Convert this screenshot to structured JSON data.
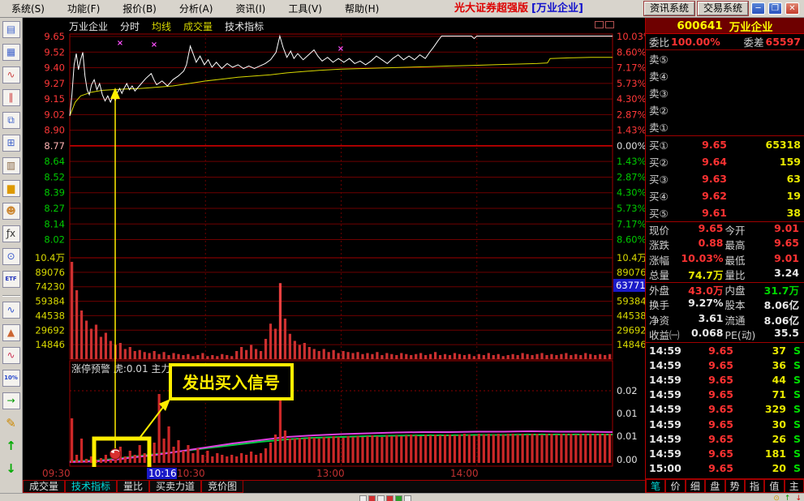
{
  "menu": {
    "items": [
      "系统(S)",
      "功能(F)",
      "报价(B)",
      "分析(A)",
      "资讯(I)",
      "工具(V)",
      "帮助(H)"
    ]
  },
  "titlebar": {
    "app_title": "光大证券超强版",
    "context": "[万业企业]",
    "info_button": "资讯系统",
    "trade_button": "交易系统"
  },
  "toolbar_icons": [
    {
      "name": "report-icon",
      "glyph": "▤",
      "color": "#4466cc"
    },
    {
      "name": "quote-table-icon",
      "glyph": "▦",
      "color": "#4466cc"
    },
    {
      "name": "trend-line-icon",
      "glyph": "∿",
      "color": "#cc4444"
    },
    {
      "name": "kline-icon",
      "glyph": "∥",
      "color": "#cc3333"
    },
    {
      "name": "pages-icon",
      "glyph": "⧉",
      "color": "#4466cc"
    },
    {
      "name": "multi-window-icon",
      "glyph": "⊞",
      "color": "#4466cc"
    },
    {
      "name": "page-setup-icon",
      "glyph": "▥",
      "color": "#886644"
    },
    {
      "name": "gold-icon",
      "glyph": "▆",
      "color": "#dd9900"
    },
    {
      "name": "users-icon",
      "glyph": "☻☻",
      "color": "#cc8833"
    },
    {
      "name": "formula-icon",
      "glyph": "ƒx",
      "color": "#333333"
    },
    {
      "name": "search-page-icon",
      "glyph": "⊙",
      "color": "#3355cc"
    },
    {
      "name": "etf-icon",
      "glyph": "ETF",
      "color": "#2233bb",
      "txt": true
    },
    {
      "sep": true
    },
    {
      "name": "wave-icon",
      "glyph": "∿",
      "color": "#3355cc"
    },
    {
      "name": "mountain-chart-icon",
      "glyph": "▲",
      "color": "#cc6633"
    },
    {
      "name": "indicator-chart-icon",
      "glyph": "∿",
      "color": "#cc3355"
    },
    {
      "name": "percent-icon",
      "glyph": "10%",
      "color": "#2244cc",
      "txt": true
    },
    {
      "name": "exit-door-icon",
      "glyph": "→",
      "color": "#009900"
    },
    {
      "name": "pencil-icon",
      "glyph": "✎",
      "color": "#cc8800",
      "flat": true
    },
    {
      "name": "arrow-up-icon",
      "glyph": "↑",
      "color": "#00aa00",
      "flat": true
    },
    {
      "name": "arrow-down-icon",
      "glyph": "↓",
      "color": "#00aa00",
      "flat": true
    }
  ],
  "chart": {
    "header": {
      "stock": "万业企业",
      "views": [
        {
          "label": "分时",
          "color": "#e8e8e8"
        },
        {
          "label": "均线",
          "color": "#d8d800"
        },
        {
          "label": "成交量",
          "color": "#d8d800"
        },
        {
          "label": "技术指标",
          "color": "#e8e8e8"
        }
      ]
    },
    "left_prices": [
      {
        "t": "9.65",
        "c": "r"
      },
      {
        "t": "9.52",
        "c": "r"
      },
      {
        "t": "9.40",
        "c": "r"
      },
      {
        "t": "9.27",
        "c": "r"
      },
      {
        "t": "9.15",
        "c": "r"
      },
      {
        "t": "9.02",
        "c": "r"
      },
      {
        "t": "8.90",
        "c": "r"
      },
      {
        "t": "8.77",
        "c": "p"
      },
      {
        "t": "8.64",
        "c": "g"
      },
      {
        "t": "8.52",
        "c": "g"
      },
      {
        "t": "8.39",
        "c": "g"
      },
      {
        "t": "8.27",
        "c": "g"
      },
      {
        "t": "8.14",
        "c": "g"
      },
      {
        "t": "8.02",
        "c": "g"
      }
    ],
    "right_pcts": [
      {
        "t": "10.03%",
        "c": "r"
      },
      {
        "t": "8.60%",
        "c": "r"
      },
      {
        "t": "7.17%",
        "c": "r"
      },
      {
        "t": "5.73%",
        "c": "r"
      },
      {
        "t": "4.30%",
        "c": "r"
      },
      {
        "t": "2.87%",
        "c": "r"
      },
      {
        "t": "1.43%",
        "c": "r"
      },
      {
        "t": "0.00%",
        "c": "w"
      },
      {
        "t": "1.43%",
        "c": "g"
      },
      {
        "t": "2.87%",
        "c": "g"
      },
      {
        "t": "4.30%",
        "c": "g"
      },
      {
        "t": "5.73%",
        "c": "g"
      },
      {
        "t": "7.17%",
        "c": "g"
      },
      {
        "t": "8.60%",
        "c": "g"
      }
    ],
    "vol_labels": [
      "10.4万",
      "89076",
      "74230",
      "59384",
      "44538",
      "29692",
      "14846"
    ],
    "vol_highlight": "63771",
    "ind_labels": [
      "0.02",
      "0.01",
      "0.01",
      "0.00"
    ],
    "ind_title": "涨停预警 虎:0.01 主力:0.01 散户:0.01",
    "signal_text": "发出买入信号",
    "time_labels": [
      {
        "t": "09:30",
        "x": 24,
        "hl": false
      },
      {
        "t": "10:16",
        "x": 155,
        "hl": true
      },
      {
        "t": "10:30",
        "x": 190,
        "hl": false
      },
      {
        "t": "13:00",
        "x": 362,
        "hl": false
      },
      {
        "t": "14:00",
        "x": 527,
        "hl": false
      }
    ],
    "bottom_tabs": [
      {
        "label": "成交量",
        "active": false
      },
      {
        "label": "技术指标",
        "active": true
      },
      {
        "label": "量比",
        "active": false
      },
      {
        "label": "买卖力道",
        "active": false
      },
      {
        "label": "竞价图",
        "active": false
      }
    ]
  },
  "chart_data": {
    "type": "line",
    "x_range": [
      "09:30",
      "15:00"
    ],
    "prev_close": 8.77,
    "price_range": [
      8.02,
      9.65
    ],
    "limit_up_pct": "10.03%",
    "price_points": [
      [
        0,
        9.01
      ],
      [
        0.004,
        9.18
      ],
      [
        0.008,
        9.42
      ],
      [
        0.012,
        9.51
      ],
      [
        0.016,
        9.38
      ],
      [
        0.02,
        9.46
      ],
      [
        0.024,
        9.52
      ],
      [
        0.028,
        9.33
      ],
      [
        0.032,
        9.22
      ],
      [
        0.036,
        9.18
      ],
      [
        0.04,
        9.26
      ],
      [
        0.045,
        9.3
      ],
      [
        0.05,
        9.22
      ],
      [
        0.055,
        9.27
      ],
      [
        0.06,
        9.18
      ],
      [
        0.065,
        9.13
      ],
      [
        0.07,
        9.17
      ],
      [
        0.075,
        9.12
      ],
      [
        0.08,
        9.17
      ],
      [
        0.084,
        9.13
      ],
      [
        0.088,
        9.2
      ],
      [
        0.092,
        9.23
      ],
      [
        0.096,
        9.19
      ],
      [
        0.1,
        9.23
      ],
      [
        0.105,
        9.27
      ],
      [
        0.11,
        9.22
      ],
      [
        0.115,
        9.25
      ],
      [
        0.12,
        9.21
      ],
      [
        0.13,
        9.26
      ],
      [
        0.14,
        9.31
      ],
      [
        0.15,
        9.35
      ],
      [
        0.155,
        9.3
      ],
      [
        0.16,
        9.26
      ],
      [
        0.17,
        9.29
      ],
      [
        0.18,
        9.25
      ],
      [
        0.19,
        9.3
      ],
      [
        0.2,
        9.33
      ],
      [
        0.21,
        9.37
      ],
      [
        0.215,
        9.42
      ],
      [
        0.222,
        9.57
      ],
      [
        0.228,
        9.5
      ],
      [
        0.233,
        9.44
      ],
      [
        0.24,
        9.49
      ],
      [
        0.248,
        9.42
      ],
      [
        0.255,
        9.46
      ],
      [
        0.262,
        9.4
      ],
      [
        0.27,
        9.44
      ],
      [
        0.28,
        9.39
      ],
      [
        0.29,
        9.43
      ],
      [
        0.3,
        9.4
      ],
      [
        0.31,
        9.42
      ],
      [
        0.32,
        9.39
      ],
      [
        0.33,
        9.41
      ],
      [
        0.34,
        9.39
      ],
      [
        0.35,
        9.41
      ],
      [
        0.36,
        9.43
      ],
      [
        0.37,
        9.46
      ],
      [
        0.38,
        9.52
      ],
      [
        0.387,
        9.65
      ],
      [
        0.393,
        9.56
      ],
      [
        0.4,
        9.48
      ],
      [
        0.407,
        9.53
      ],
      [
        0.413,
        9.47
      ],
      [
        0.42,
        9.51
      ],
      [
        0.43,
        9.46
      ],
      [
        0.44,
        9.5
      ],
      [
        0.45,
        9.54
      ],
      [
        0.457,
        9.49
      ],
      [
        0.465,
        9.45
      ],
      [
        0.475,
        9.48
      ],
      [
        0.485,
        9.44
      ],
      [
        0.495,
        9.47
      ],
      [
        0.505,
        9.44
      ],
      [
        0.515,
        9.47
      ],
      [
        0.525,
        9.43
      ],
      [
        0.535,
        9.45
      ],
      [
        0.545,
        9.42
      ],
      [
        0.555,
        9.45
      ],
      [
        0.565,
        9.49
      ],
      [
        0.575,
        9.46
      ],
      [
        0.585,
        9.43
      ],
      [
        0.595,
        9.47
      ],
      [
        0.605,
        9.5
      ],
      [
        0.615,
        9.46
      ],
      [
        0.625,
        9.49
      ],
      [
        0.635,
        9.46
      ],
      [
        0.645,
        9.5
      ],
      [
        0.655,
        9.47
      ],
      [
        0.663,
        9.52
      ],
      [
        0.67,
        9.56
      ],
      [
        0.678,
        9.61
      ],
      [
        0.685,
        9.65
      ],
      [
        0.74,
        9.65
      ],
      [
        0.745,
        9.63
      ],
      [
        0.75,
        9.65
      ],
      [
        1,
        9.65
      ]
    ],
    "avg_points": [
      [
        0,
        9.01
      ],
      [
        0.01,
        9.12
      ],
      [
        0.02,
        9.17
      ],
      [
        0.04,
        9.2
      ],
      [
        0.06,
        9.215
      ],
      [
        0.08,
        9.22
      ],
      [
        0.1,
        9.225
      ],
      [
        0.13,
        9.23
      ],
      [
        0.16,
        9.24
      ],
      [
        0.19,
        9.25
      ],
      [
        0.22,
        9.27
      ],
      [
        0.25,
        9.29
      ],
      [
        0.28,
        9.305
      ],
      [
        0.31,
        9.32
      ],
      [
        0.34,
        9.33
      ],
      [
        0.37,
        9.34
      ],
      [
        0.4,
        9.355
      ],
      [
        0.43,
        9.365
      ],
      [
        0.46,
        9.375
      ],
      [
        0.5,
        9.385
      ],
      [
        0.54,
        9.39
      ],
      [
        0.58,
        9.395
      ],
      [
        0.62,
        9.4
      ],
      [
        0.66,
        9.405
      ],
      [
        0.7,
        9.41
      ],
      [
        0.74,
        9.415
      ],
      [
        0.78,
        9.42
      ],
      [
        0.82,
        9.425
      ],
      [
        0.86,
        9.43
      ],
      [
        0.88,
        9.435
      ],
      [
        0.885,
        9.47
      ],
      [
        0.92,
        9.475
      ],
      [
        0.96,
        9.48
      ],
      [
        1,
        9.48
      ]
    ],
    "volume_bars": [
      96,
      68,
      48,
      38,
      30,
      34,
      22,
      26,
      18,
      14,
      16,
      10,
      12,
      8,
      9,
      7,
      6,
      8,
      5,
      7,
      4,
      6,
      5,
      4,
      5,
      3,
      4,
      6,
      3,
      4,
      3,
      5,
      4,
      3,
      8,
      12,
      9,
      14,
      10,
      8,
      20,
      35,
      30,
      75,
      40,
      25,
      18,
      14,
      16,
      12,
      10,
      8,
      10,
      7,
      9,
      6,
      8,
      7,
      6,
      7,
      5,
      6,
      5,
      7,
      4,
      6,
      5,
      4,
      6,
      5,
      4,
      5,
      6,
      4,
      5,
      7,
      4,
      5,
      4,
      6,
      5,
      4,
      5,
      3,
      5,
      4,
      6,
      4,
      5,
      3,
      4,
      5,
      4,
      6,
      5,
      4,
      5,
      6,
      4,
      5,
      4,
      5,
      6,
      4,
      5,
      4,
      6,
      5,
      4,
      5,
      4,
      5
    ],
    "indicator_bars": [
      55,
      10,
      30,
      5,
      8,
      4,
      6,
      10,
      4,
      6,
      20,
      8,
      15,
      10,
      22,
      12,
      18,
      25,
      85,
      30,
      45,
      20,
      28,
      15,
      22,
      12,
      18,
      10,
      15,
      8,
      12,
      10,
      8,
      10,
      8,
      12,
      10,
      14,
      10,
      12,
      18,
      25,
      35,
      95,
      40,
      30,
      30,
      31,
      30,
      32,
      31,
      30,
      32,
      31,
      33,
      32,
      31,
      33,
      32,
      33,
      32,
      33,
      34,
      33,
      32,
      34,
      33,
      34,
      33,
      34,
      35,
      34,
      33,
      35,
      34,
      35,
      34,
      35,
      35,
      34,
      35,
      36,
      35,
      34,
      36,
      35,
      36,
      35,
      36,
      35,
      36,
      36,
      35,
      36,
      35,
      36,
      36,
      35,
      36,
      36,
      35,
      36,
      36,
      36,
      35,
      36,
      36,
      36,
      36,
      36,
      36,
      36
    ],
    "green_line": [
      [
        0,
        2
      ],
      [
        0.05,
        3
      ],
      [
        0.084,
        5
      ],
      [
        0.12,
        8
      ],
      [
        0.16,
        11
      ],
      [
        0.2,
        14
      ],
      [
        0.25,
        18
      ],
      [
        0.3,
        22
      ],
      [
        0.35,
        26
      ],
      [
        0.4,
        29
      ],
      [
        0.45,
        31
      ],
      [
        0.5,
        32
      ],
      [
        0.55,
        33
      ],
      [
        0.6,
        33.5
      ],
      [
        0.65,
        34
      ],
      [
        0.7,
        34
      ],
      [
        0.75,
        34.5
      ],
      [
        0.8,
        34.5
      ],
      [
        0.85,
        35
      ],
      [
        0.9,
        35
      ],
      [
        0.95,
        35
      ],
      [
        1,
        35
      ]
    ],
    "magenta_line": [
      [
        0,
        1
      ],
      [
        0.05,
        2
      ],
      [
        0.084,
        4
      ],
      [
        0.12,
        7
      ],
      [
        0.16,
        10
      ],
      [
        0.2,
        14
      ],
      [
        0.25,
        19
      ],
      [
        0.3,
        24
      ],
      [
        0.35,
        28
      ],
      [
        0.4,
        32
      ],
      [
        0.45,
        34
      ],
      [
        0.5,
        35.5
      ],
      [
        0.55,
        36.5
      ],
      [
        0.6,
        37.5
      ],
      [
        0.65,
        38
      ],
      [
        0.7,
        38
      ],
      [
        0.75,
        38.5
      ],
      [
        0.8,
        38.5
      ],
      [
        0.85,
        39
      ],
      [
        0.9,
        38.5
      ],
      [
        0.95,
        38.5
      ],
      [
        1,
        38
      ]
    ],
    "x_marks": [
      [
        120,
        31
      ],
      [
        162,
        33
      ],
      [
        392,
        38
      ]
    ]
  },
  "quote": {
    "code": "600641",
    "name": "万业企业",
    "weibi_label": "委比",
    "weibi_value": "100.00%",
    "weicha_label": "委差",
    "weicha_value": "65597",
    "sells": [
      {
        "l": "卖⑤",
        "p": "",
        "v": ""
      },
      {
        "l": "卖④",
        "p": "",
        "v": ""
      },
      {
        "l": "卖③",
        "p": "",
        "v": ""
      },
      {
        "l": "卖②",
        "p": "",
        "v": ""
      },
      {
        "l": "卖①",
        "p": "",
        "v": ""
      }
    ],
    "buys": [
      {
        "l": "买①",
        "p": "9.65",
        "v": "65318"
      },
      {
        "l": "买②",
        "p": "9.64",
        "v": "159"
      },
      {
        "l": "买③",
        "p": "9.63",
        "v": "63"
      },
      {
        "l": "买④",
        "p": "9.62",
        "v": "19"
      },
      {
        "l": "买⑤",
        "p": "9.61",
        "v": "38"
      }
    ],
    "info_rows": [
      [
        {
          "l": "现价",
          "v": "9.65",
          "c": "r"
        },
        {
          "l": "今开",
          "v": "9.01",
          "c": "r"
        }
      ],
      [
        {
          "l": "涨跌",
          "v": "0.88",
          "c": "r"
        },
        {
          "l": "最高",
          "v": "9.65",
          "c": "r"
        }
      ],
      [
        {
          "l": "涨幅",
          "v": "10.03%",
          "c": "r"
        },
        {
          "l": "最低",
          "v": "9.01",
          "c": "r"
        }
      ],
      [
        {
          "l": "总量",
          "v": "74.7万",
          "c": "y"
        },
        {
          "l": "量比",
          "v": "3.24",
          "c": "w"
        }
      ],
      [
        {
          "l": "外盘",
          "v": "43.0万",
          "c": "r"
        },
        {
          "l": "内盘",
          "v": "31.7万",
          "c": "g"
        }
      ],
      [
        {
          "l": "换手",
          "v": "9.27%",
          "c": "w"
        },
        {
          "l": "股本",
          "v": "8.06亿",
          "c": "w"
        }
      ],
      [
        {
          "l": "净资",
          "v": "3.61",
          "c": "w"
        },
        {
          "l": "流通",
          "v": "8.06亿",
          "c": "w"
        }
      ],
      [
        {
          "l": "收益㈠",
          "v": "0.068",
          "c": "w"
        },
        {
          "l": "PE(动)",
          "v": "35.5",
          "c": "w"
        }
      ]
    ],
    "ticks": [
      [
        "14:59",
        "9.65",
        "37"
      ],
      [
        "14:59",
        "9.65",
        "36"
      ],
      [
        "14:59",
        "9.65",
        "44"
      ],
      [
        "14:59",
        "9.65",
        "71"
      ],
      [
        "14:59",
        "9.65",
        "329"
      ],
      [
        "14:59",
        "9.65",
        "30"
      ],
      [
        "14:59",
        "9.65",
        "26"
      ],
      [
        "14:59",
        "9.65",
        "181"
      ],
      [
        "15:00",
        "9.65",
        "20"
      ]
    ],
    "tabs": [
      {
        "label": "笔",
        "active": true
      },
      {
        "label": "价",
        "active": false
      },
      {
        "label": "细",
        "active": false
      },
      {
        "label": "盘",
        "active": false
      },
      {
        "label": "势",
        "active": false
      },
      {
        "label": "指",
        "active": false
      },
      {
        "label": "值",
        "active": false
      },
      {
        "label": "主",
        "active": false
      }
    ]
  },
  "colors": {
    "up": "#ff3838",
    "down": "#00c800",
    "neutral": "#e0e0e0",
    "pale": "#ffb4b4",
    "volume_label": "#d8d800",
    "grid": "#6e0000",
    "border": "#a00000",
    "highlight_blue": "#1a1ac8",
    "signal_yellow": "#ffee00"
  }
}
